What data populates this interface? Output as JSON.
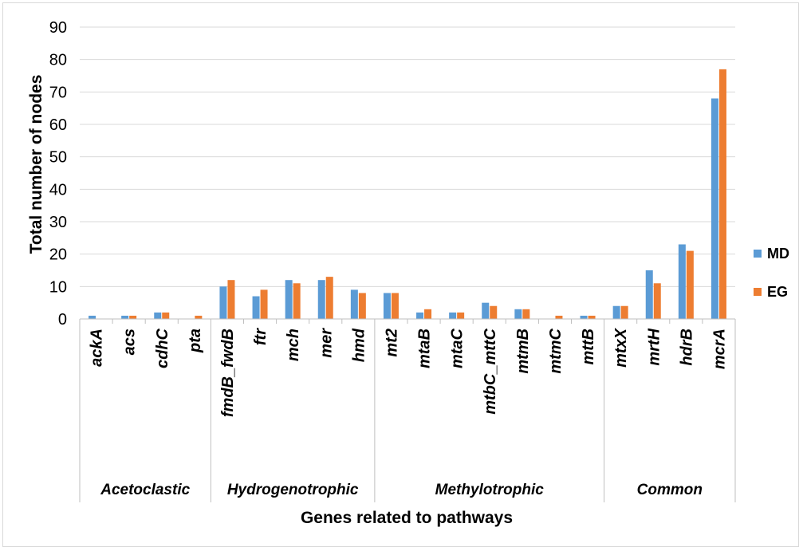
{
  "chart_data": {
    "type": "bar",
    "title": "",
    "xlabel": "Genes related to pathways",
    "ylabel": "Total number of nodes",
    "ylim": [
      0,
      90
    ],
    "yticks": [
      0,
      10,
      20,
      30,
      40,
      50,
      60,
      70,
      80,
      90
    ],
    "grid": true,
    "legend_position": "right",
    "categories": [
      "ackA",
      "acs",
      "cdhC",
      "pta",
      "fmdB_fwdB",
      "ftr",
      "mch",
      "mer",
      "hmd",
      "mt2",
      "mtaB",
      "mtaC",
      "mtbC_mttC",
      "mtmB",
      "mtmC",
      "mttB",
      "mtxX",
      "mrtH",
      "hdrB",
      "mcrA"
    ],
    "groups": [
      {
        "name": "Acetoclastic",
        "count": 4
      },
      {
        "name": "Hydrogenotrophic",
        "count": 5
      },
      {
        "name": "Methylotrophic",
        "count": 7
      },
      {
        "name": "Common",
        "count": 4
      }
    ],
    "series": [
      {
        "name": "MD",
        "color": "#5b9bd5",
        "values": [
          1,
          1,
          2,
          0,
          10,
          7,
          12,
          12,
          9,
          8,
          2,
          2,
          5,
          3,
          0,
          1,
          4,
          15,
          23,
          68
        ]
      },
      {
        "name": "EG",
        "color": "#ed7d31",
        "values": [
          0,
          1,
          2,
          1,
          12,
          9,
          11,
          13,
          8,
          8,
          3,
          2,
          4,
          3,
          1,
          1,
          4,
          11,
          21,
          77
        ]
      }
    ]
  }
}
